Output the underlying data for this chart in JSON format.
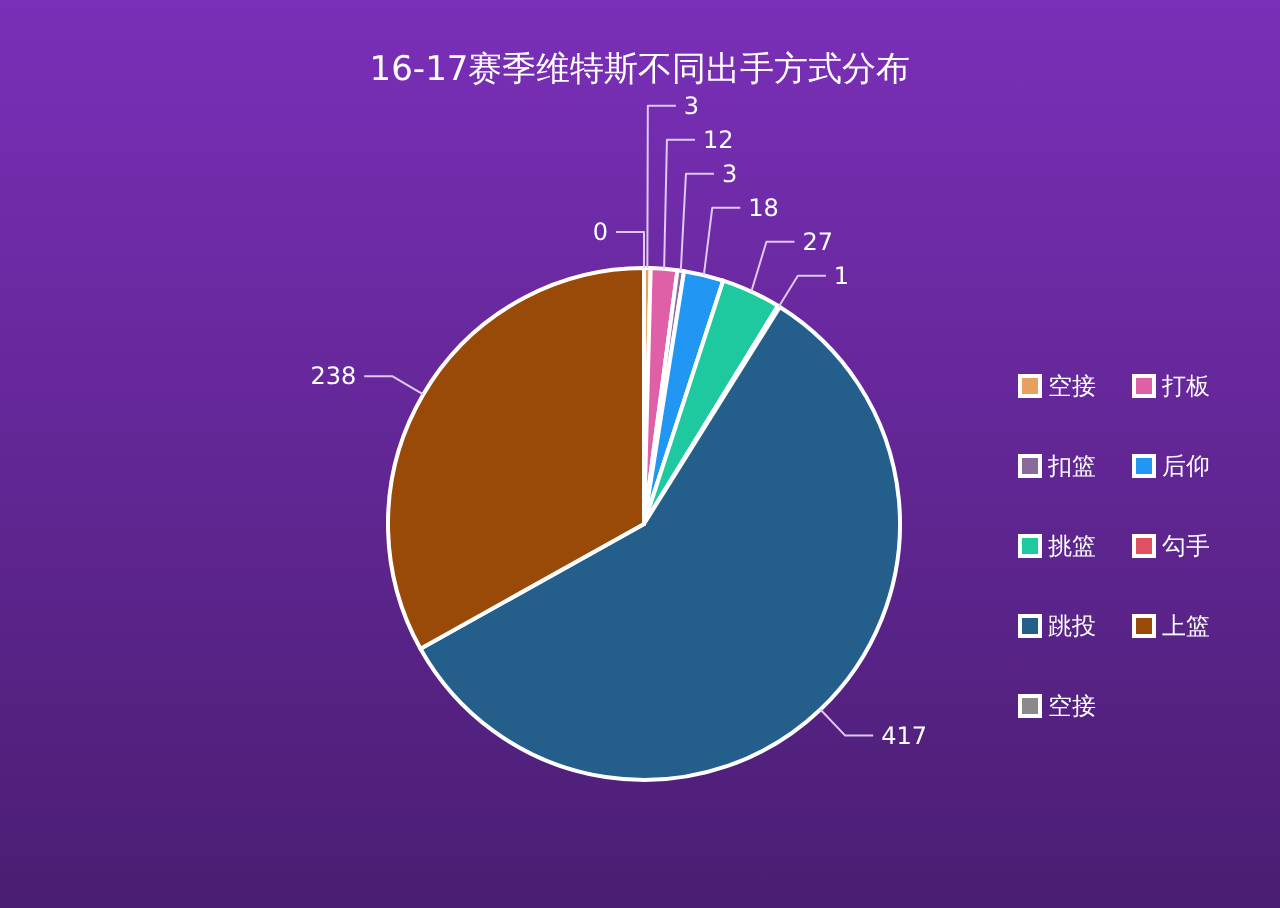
{
  "chart_data": {
    "type": "pie",
    "title": "16-17赛季维特斯不同出手方式分布",
    "categories": [
      "空接",
      "打板",
      "扣篮",
      "后仰",
      "挑篮",
      "勾手",
      "跳投",
      "上篮",
      "空接"
    ],
    "values": [
      3,
      12,
      3,
      18,
      27,
      1,
      417,
      238,
      0
    ],
    "colors": [
      "#e8a060",
      "#e060a8",
      "#8a6a9a",
      "#2196f3",
      "#1fc9a0",
      "#e05060",
      "#245f8c",
      "#9a4a08",
      "#8a8a8a"
    ],
    "value_labels": [
      "3",
      "12",
      "3",
      "18",
      "27",
      "1",
      "417",
      "238",
      "0"
    ],
    "legend": "right"
  }
}
